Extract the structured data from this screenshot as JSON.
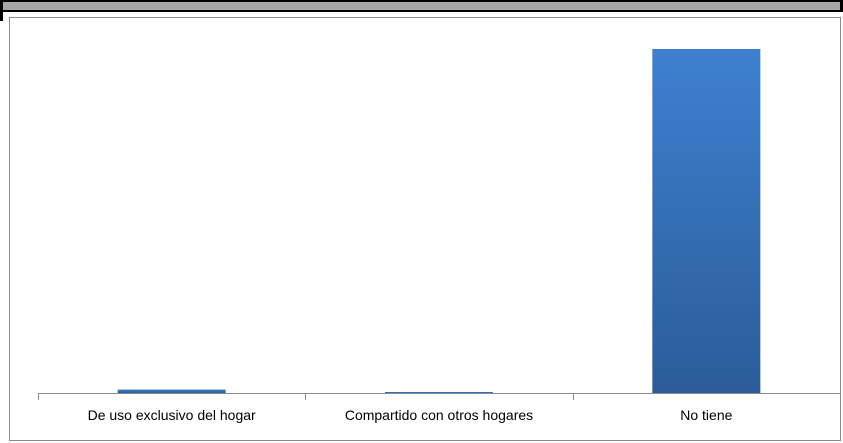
{
  "chart_data": {
    "type": "bar",
    "categories": [
      "De uso exclusivo del hogar",
      "Compartido con otros hogares",
      "No tiene"
    ],
    "values": [
      1,
      0.2,
      100
    ],
    "ylim": [
      0,
      100
    ],
    "grid": false,
    "legend": "none",
    "colors": {
      "bar_top": "#3e80d0",
      "bar_bottom": "#2a5c98",
      "axis": "#8c8c8c"
    }
  }
}
